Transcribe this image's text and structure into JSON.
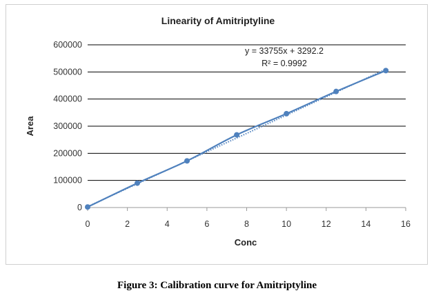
{
  "chart_data": {
    "type": "scatter",
    "title": "Linearity of Amitriptyline",
    "xlabel": "Conc",
    "ylabel": "Area",
    "xlim": [
      0,
      16
    ],
    "ylim": [
      0,
      600000
    ],
    "xticks": [
      "0",
      "2",
      "4",
      "6",
      "8",
      "10",
      "12",
      "14",
      "16"
    ],
    "yticks": [
      "0",
      "100000",
      "200000",
      "300000",
      "400000",
      "500000",
      "600000"
    ],
    "grid": "horizontal major gridlines",
    "legend": "none",
    "series": [
      {
        "x": [
          0,
          2.5,
          5,
          7.5,
          10,
          12.5,
          15
        ],
        "y": [
          2000,
          90000,
          172000,
          268000,
          346000,
          428000,
          505000
        ],
        "color": "#4f81bd",
        "line": "smoothed"
      }
    ],
    "trendline": {
      "slope": 33755,
      "intercept": 3292.2,
      "style": "dotted",
      "color": "#4f81bd"
    },
    "equation": "y = 33755x + 3292.2",
    "r_squared": "R² = 0.9992"
  },
  "caption": "Figure 3: Calibration curve for Amitriptyline"
}
